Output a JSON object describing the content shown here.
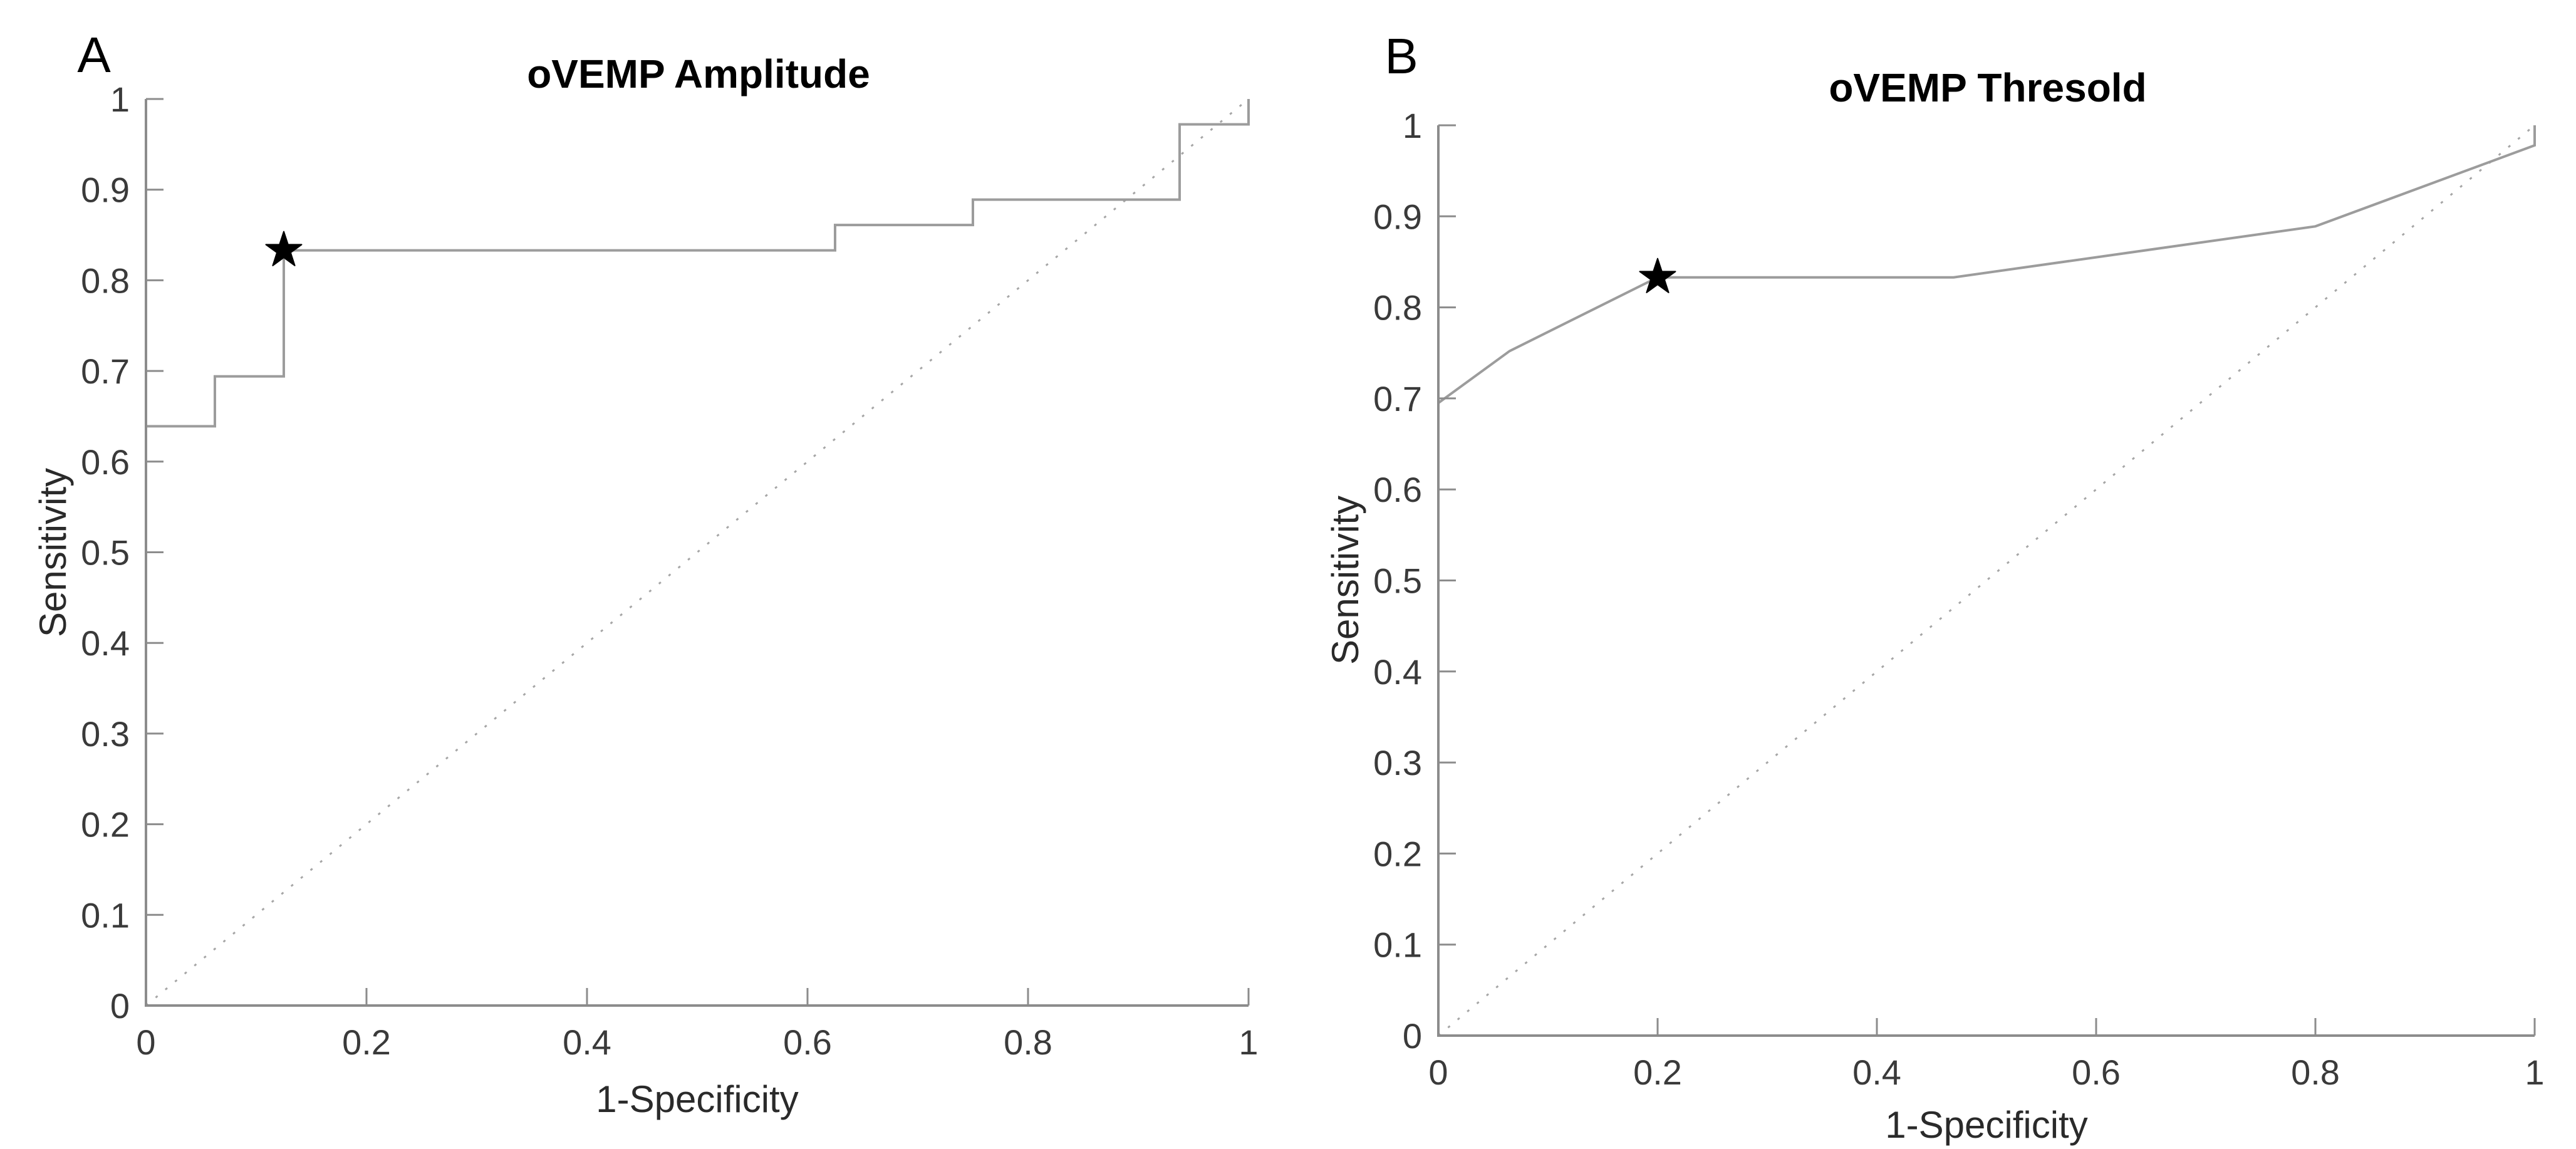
{
  "figure": {
    "background": "#ffffff",
    "axis_color": "#8c8c8c",
    "tick_label_color": "#3a3a3a",
    "text_color": "#000000"
  },
  "chart_data": [
    {
      "type": "line",
      "panel_letter": "A",
      "title": "oVEMP Amplitude",
      "xlabel": "1-Specificity",
      "ylabel": "Sensitivity",
      "xlim": [
        0,
        1
      ],
      "ylim": [
        0,
        1
      ],
      "x_ticks": [
        "0",
        "0.2",
        "0.4",
        "0.6",
        "0.8",
        "1"
      ],
      "y_ticks": [
        "0",
        "0.1",
        "0.2",
        "0.3",
        "0.4",
        "0.5",
        "0.6",
        "0.7",
        "0.8",
        "0.9",
        "1"
      ],
      "grid": false,
      "legend": "none",
      "series": [
        {
          "name": "ROC curve",
          "style": "solid",
          "color": "#9c9c9c",
          "points": [
            [
              0,
              0.639
            ],
            [
              0.0625,
              0.639
            ],
            [
              0.0625,
              0.694
            ],
            [
              0.125,
              0.694
            ],
            [
              0.125,
              0.833
            ],
            [
              0.625,
              0.833
            ],
            [
              0.625,
              0.861
            ],
            [
              0.75,
              0.861
            ],
            [
              0.75,
              0.889
            ],
            [
              0.9375,
              0.889
            ],
            [
              0.9375,
              0.972
            ],
            [
              1,
              0.972
            ],
            [
              1,
              1
            ]
          ]
        },
        {
          "name": "chance diagonal",
          "style": "dotted",
          "color": "#a6a6a6",
          "points": [
            [
              0,
              0
            ],
            [
              1,
              1
            ]
          ]
        }
      ],
      "marker": {
        "shape": "star",
        "name": "optimal cutoff point",
        "color": "#000000",
        "point": [
          0.125,
          0.833
        ]
      }
    },
    {
      "type": "line",
      "panel_letter": "B",
      "title": "oVEMP Thresold",
      "xlabel": "1-Specificity",
      "ylabel": "Sensitivity",
      "xlim": [
        0,
        1
      ],
      "ylim": [
        0,
        1
      ],
      "x_ticks": [
        "0",
        "0.2",
        "0.4",
        "0.6",
        "0.8",
        "1"
      ],
      "y_ticks": [
        "0",
        "0.1",
        "0.2",
        "0.3",
        "0.4",
        "0.5",
        "0.6",
        "0.7",
        "0.8",
        "0.9",
        "1"
      ],
      "grid": false,
      "legend": "none",
      "series": [
        {
          "name": "ROC curve",
          "style": "solid",
          "color": "#9c9c9c",
          "points": [
            [
              0,
              0.695
            ],
            [
              0.065,
              0.752
            ],
            [
              0.2,
              0.833
            ],
            [
              0.47,
              0.833
            ],
            [
              0.8,
              0.889
            ],
            [
              1,
              0.978
            ],
            [
              1,
              1
            ]
          ]
        },
        {
          "name": "chance diagonal",
          "style": "dotted",
          "color": "#a6a6a6",
          "points": [
            [
              0,
              0
            ],
            [
              1,
              1
            ]
          ]
        }
      ],
      "marker": {
        "shape": "star",
        "name": "optimal cutoff point",
        "color": "#000000",
        "point": [
          0.2,
          0.833
        ]
      }
    }
  ]
}
